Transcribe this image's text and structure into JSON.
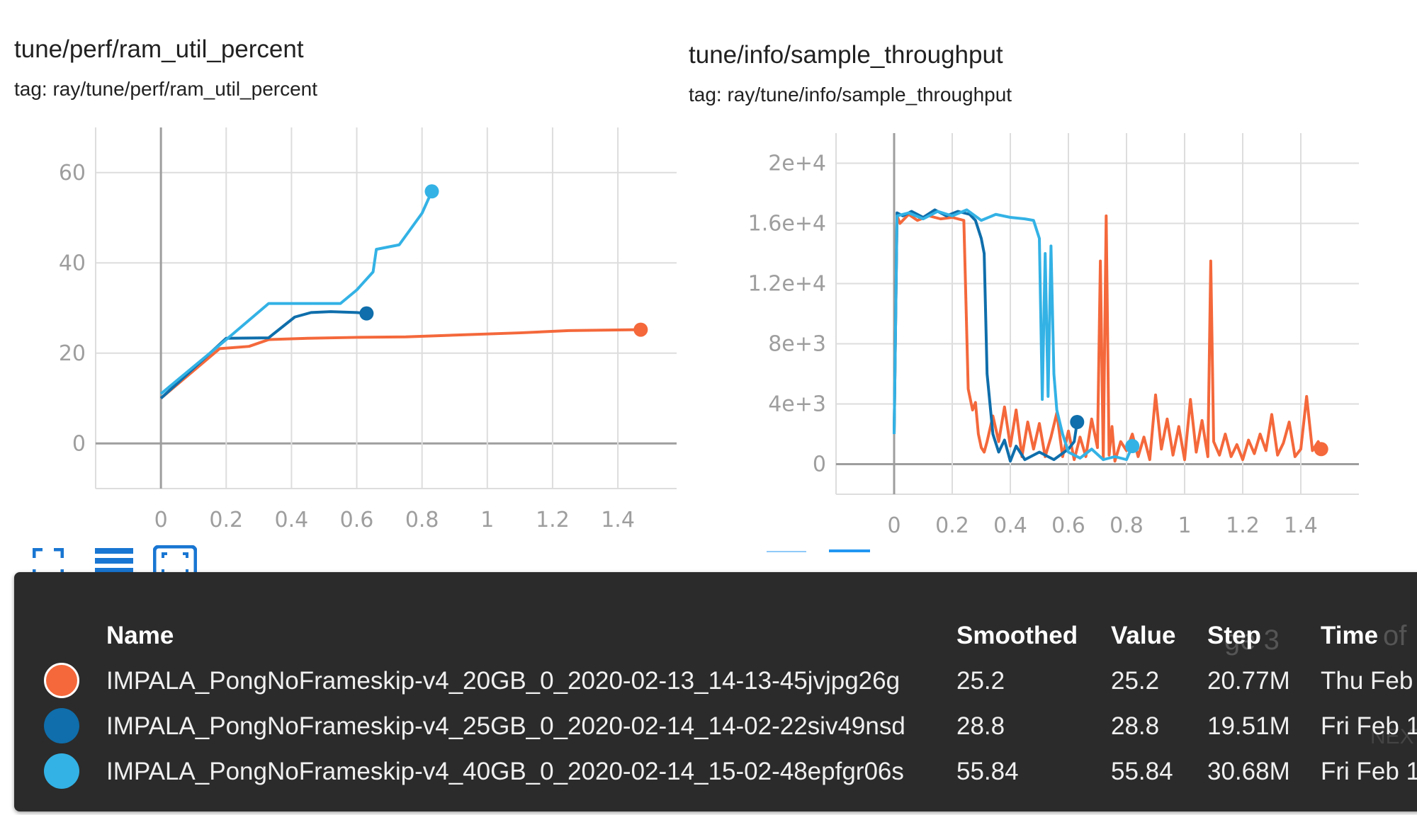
{
  "charts": [
    {
      "title": "tune/perf/ram_util_percent",
      "tag": "tag: ray/tune/perf/ram_util_percent",
      "chart_data": {
        "type": "line",
        "title": "tune/perf/ram_util_percent",
        "xlabel": "",
        "ylabel": "",
        "x_ticks": [
          "0",
          "0.2",
          "0.4",
          "0.6",
          "0.8",
          "1",
          "1.2",
          "1.4"
        ],
        "y_ticks": [
          "0",
          "20",
          "40",
          "60"
        ],
        "xlim": [
          -0.2,
          1.58
        ],
        "ylim": [
          -10,
          70
        ],
        "grid": true,
        "series": [
          {
            "color": "#f4683b",
            "x": [
              0,
              0.18,
              0.27,
              0.33,
              0.45,
              0.6,
              0.75,
              0.9,
              1.1,
              1.25,
              1.47
            ],
            "y": [
              10,
              21,
              21.5,
              23,
              23.3,
              23.5,
              23.6,
              24,
              24.5,
              25,
              25.2
            ]
          },
          {
            "color": "#0f6eab",
            "x": [
              0,
              0.2,
              0.33,
              0.41,
              0.46,
              0.52,
              0.6,
              0.63
            ],
            "y": [
              10,
              23.3,
              23.4,
              28,
              29,
              29.2,
              29,
              28.8
            ]
          },
          {
            "color": "#33b2e5",
            "x": [
              0,
              0.2,
              0.33,
              0.4,
              0.55,
              0.6,
              0.65,
              0.66,
              0.73,
              0.8,
              0.83
            ],
            "y": [
              11,
              23,
              31,
              31,
              31,
              34,
              38,
              43,
              44,
              51,
              55.84
            ]
          }
        ]
      }
    },
    {
      "title": "tune/info/sample_throughput",
      "tag": "tag: ray/tune/info/sample_throughput",
      "chart_data": {
        "type": "line",
        "title": "tune/info/sample_throughput",
        "xlabel": "",
        "ylabel": "",
        "x_ticks": [
          "0",
          "0.2",
          "0.4",
          "0.6",
          "0.8",
          "1",
          "1.2",
          "1.4"
        ],
        "y_ticks": [
          "0",
          "4e+3",
          "8e+3",
          "1.2e+4",
          "1.6e+4",
          "2e+4"
        ],
        "xlim": [
          -0.2,
          1.6
        ],
        "ylim": [
          -2000,
          22000
        ],
        "grid": true,
        "series": [
          {
            "color": "#f4683b",
            "x": [
              0,
              0.01,
              0.02,
              0.05,
              0.08,
              0.12,
              0.16,
              0.2,
              0.24,
              0.255,
              0.27,
              0.28,
              0.29,
              0.3,
              0.31,
              0.32,
              0.34,
              0.36,
              0.38,
              0.4,
              0.42,
              0.44,
              0.46,
              0.48,
              0.5,
              0.52,
              0.54,
              0.56,
              0.58,
              0.6,
              0.62,
              0.64,
              0.66,
              0.68,
              0.7,
              0.71,
              0.72,
              0.73,
              0.74,
              0.75,
              0.76,
              0.78,
              0.8,
              0.82,
              0.84,
              0.86,
              0.88,
              0.9,
              0.92,
              0.94,
              0.96,
              0.98,
              1.0,
              1.02,
              1.04,
              1.06,
              1.08,
              1.09,
              1.1,
              1.12,
              1.14,
              1.16,
              1.18,
              1.2,
              1.22,
              1.24,
              1.26,
              1.28,
              1.3,
              1.32,
              1.34,
              1.36,
              1.38,
              1.4,
              1.42,
              1.44,
              1.46,
              1.47
            ],
            "y": [
              2000,
              16500,
              16000,
              16600,
              16200,
              16500,
              16300,
              16400,
              16200,
              5000,
              3600,
              4100,
              2000,
              1100,
              800,
              1500,
              3200,
              1500,
              3800,
              1200,
              3600,
              500,
              2800,
              1000,
              2700,
              500,
              1800,
              3400,
              500,
              2200,
              300,
              1800,
              500,
              3000,
              1100,
              13500,
              300,
              16500,
              600,
              2500,
              200,
              1500,
              900,
              2000,
              500,
              1800,
              300,
              4600,
              1000,
              3000,
              600,
              2500,
              300,
              4300,
              800,
              2900,
              500,
              13500,
              1500,
              600,
              2000,
              500,
              1300,
              300,
              1600,
              700,
              2000,
              900,
              3300,
              600,
              1400,
              2800,
              500,
              1000,
              4500,
              900,
              1500,
              1000
            ]
          },
          {
            "color": "#0f6eab",
            "x": [
              0,
              0.01,
              0.03,
              0.06,
              0.1,
              0.14,
              0.18,
              0.22,
              0.26,
              0.28,
              0.3,
              0.31,
              0.32,
              0.33,
              0.34,
              0.36,
              0.38,
              0.4,
              0.42,
              0.45,
              0.5,
              0.55,
              0.6,
              0.62,
              0.63
            ],
            "y": [
              2000,
              16700,
              16500,
              16800,
              16400,
              16900,
              16500,
              16800,
              16600,
              16200,
              15000,
              14000,
              6000,
              4000,
              2000,
              800,
              1600,
              200,
              1200,
              300,
              800,
              300,
              1000,
              1500,
              2800
            ]
          },
          {
            "color": "#33b2e5",
            "x": [
              0,
              0.01,
              0.05,
              0.1,
              0.15,
              0.2,
              0.25,
              0.3,
              0.35,
              0.4,
              0.45,
              0.48,
              0.5,
              0.51,
              0.52,
              0.53,
              0.54,
              0.55,
              0.56,
              0.58,
              0.6,
              0.64,
              0.68,
              0.72,
              0.76,
              0.8,
              0.82
            ],
            "y": [
              2000,
              16500,
              16700,
              16300,
              16800,
              16500,
              16900,
              16200,
              16600,
              16400,
              16300,
              16200,
              15000,
              4300,
              14000,
              4500,
              14500,
              6000,
              3600,
              2000,
              800,
              400,
              1000,
              300,
              500,
              300,
              1200
            ]
          }
        ]
      }
    }
  ],
  "toolbar": {
    "icons": [
      "fullscreen-icon",
      "list-icon",
      "fit-domain-icon"
    ]
  },
  "tooltip": {
    "columns": [
      "Name",
      "Smoothed",
      "Value",
      "Step",
      "Time"
    ],
    "rows": [
      {
        "color": "#f4683b",
        "name": "IMPALA_PongNoFrameskip-v4_20GB_0_2020-02-13_14-13-45jvjpg26g",
        "smoothed": "25.2",
        "value": "25.2",
        "step": "20.77M",
        "time": "Thu Feb"
      },
      {
        "color": "#0f6eab",
        "name": "IMPALA_PongNoFrameskip-v4_25GB_0_2020-02-14_14-02-22siv49nsd",
        "smoothed": "28.8",
        "value": "28.8",
        "step": "19.51M",
        "time": "Fri Feb 1"
      },
      {
        "color": "#33b2e5",
        "name": "IMPALA_PongNoFrameskip-v4_40GB_0_2020-02-14_15-02-48epfgr06s",
        "smoothed": "55.84",
        "value": "55.84",
        "step": "30.68M",
        "time": "Fri Feb 1"
      }
    ],
    "background_text": [
      "ge 3",
      "of",
      "NEXT"
    ]
  }
}
